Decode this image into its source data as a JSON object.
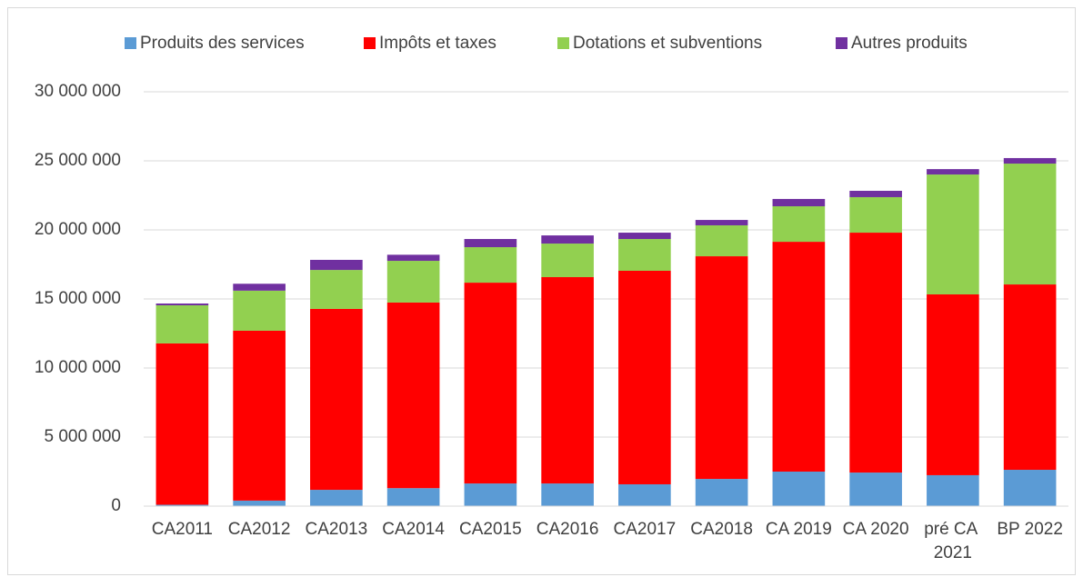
{
  "chart_data": {
    "type": "stacked_bar",
    "categories": [
      "CA2011",
      "CA2012",
      "CA2013",
      "CA2014",
      "CA2015",
      "CA2016",
      "CA2017",
      "CA2018",
      "CA 2019",
      "CA 2020",
      "pré CA 2021",
      "BP 2022"
    ],
    "series": [
      {
        "name": "Produits des services",
        "color": "#5b9bd5",
        "values": [
          100000,
          400000,
          1180000,
          1300000,
          1640000,
          1640000,
          1580000,
          1970000,
          2500000,
          2430000,
          2240000,
          2630000
        ]
      },
      {
        "name": "Impôts et taxes",
        "color": "#ff0000",
        "values": [
          11680000,
          12300000,
          13100000,
          13440000,
          14540000,
          14940000,
          15460000,
          16120000,
          16640000,
          17370000,
          13090000,
          13420000
        ]
      },
      {
        "name": "Dotations et subventions",
        "color": "#92d050",
        "values": [
          2760000,
          2900000,
          2820000,
          3020000,
          2570000,
          2430000,
          2300000,
          2240000,
          2570000,
          2570000,
          8680000,
          8750000
        ]
      },
      {
        "name": "Autres produits",
        "color": "#7030a0",
        "values": [
          130000,
          500000,
          730000,
          440000,
          590000,
          590000,
          460000,
          390000,
          530000,
          460000,
          390000,
          400000
        ]
      }
    ],
    "ylim": [
      0,
      30000000
    ],
    "yticks": [
      0,
      {
        "value": 5000000,
        "label": "5 000 000"
      },
      {
        "value": 10000000,
        "label": "10 000 000"
      },
      {
        "value": 15000000,
        "label": "15 000 000"
      },
      {
        "value": 20000000,
        "label": "20 000 000"
      },
      {
        "value": 25000000,
        "label": "25 000 000"
      },
      {
        "value": 30000000,
        "label": "30 000 000"
      }
    ],
    "grid": true,
    "legend": "top"
  }
}
